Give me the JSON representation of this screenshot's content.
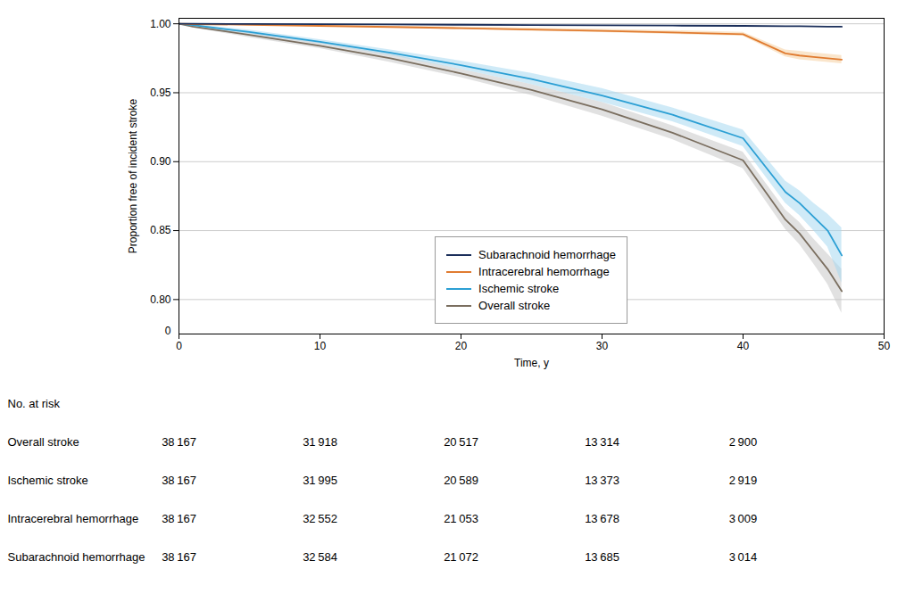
{
  "chart_data": {
    "type": "line",
    "xlabel": "Time, y",
    "ylabel": "Proportion free of incident stroke",
    "xlim": [
      0,
      50
    ],
    "xticks": [
      0,
      10,
      20,
      30,
      40,
      50
    ],
    "ylim": [
      0.775,
      1.004
    ],
    "yticks": [
      {
        "value": 0.8,
        "label": "0.80"
      },
      0.85,
      {
        "value": 0.9,
        "label": "0.90"
      },
      0.95,
      {
        "value": 1.0,
        "label": "1.00"
      }
    ],
    "grid": "y",
    "legend": "lower center",
    "annotations": [
      {
        "text": "0"
      }
    ],
    "series": [
      {
        "name": "Subarachnoid hemorrhage",
        "color": "#1a2e5a",
        "x": [
          0,
          1,
          5,
          10,
          15,
          20,
          25,
          30,
          35,
          40,
          43,
          44,
          45,
          46,
          47
        ],
        "values": [
          1.0,
          1.0,
          0.9999,
          0.9997,
          0.9995,
          0.9993,
          0.9991,
          0.9989,
          0.9987,
          0.9985,
          0.9983,
          0.9982,
          0.9981,
          0.998,
          0.9979
        ]
      },
      {
        "name": "Intracerebral hemorrhage",
        "color": "#e07b30",
        "ci_color": "#f5cfa0",
        "x": [
          0,
          1,
          5,
          10,
          15,
          20,
          25,
          30,
          35,
          40,
          43,
          44,
          45,
          46,
          47
        ],
        "values": [
          1.0,
          0.9998,
          0.9993,
          0.9985,
          0.9977,
          0.9968,
          0.9958,
          0.9948,
          0.9937,
          0.9924,
          0.9785,
          0.977,
          0.976,
          0.975,
          0.974
        ],
        "ci_upper": [
          1.0,
          1.0,
          0.9997,
          0.999,
          0.9984,
          0.9977,
          0.9969,
          0.996,
          0.995,
          0.9938,
          0.981,
          0.98,
          0.979,
          0.978,
          0.977
        ],
        "ci_lower": [
          1.0,
          0.9996,
          0.9989,
          0.998,
          0.997,
          0.9959,
          0.9947,
          0.9936,
          0.9924,
          0.991,
          0.976,
          0.974,
          0.973,
          0.972,
          0.971
        ]
      },
      {
        "name": "Ischemic stroke",
        "color": "#2b9fd4",
        "ci_color": "#a8d8f0",
        "x": [
          0,
          1,
          5,
          10,
          15,
          20,
          25,
          30,
          35,
          40,
          43,
          44,
          45,
          46,
          47
        ],
        "values": [
          1.0,
          0.999,
          0.994,
          0.987,
          0.979,
          0.97,
          0.96,
          0.948,
          0.934,
          0.917,
          0.878,
          0.87,
          0.86,
          0.85,
          0.832
        ],
        "ci_upper": [
          1.0,
          0.9995,
          0.9955,
          0.9885,
          0.981,
          0.973,
          0.964,
          0.953,
          0.939,
          0.923,
          0.886,
          0.879,
          0.87,
          0.862,
          0.852
        ],
        "ci_lower": [
          1.0,
          0.9985,
          0.9925,
          0.9855,
          0.977,
          0.967,
          0.956,
          0.943,
          0.929,
          0.911,
          0.87,
          0.861,
          0.85,
          0.838,
          0.812
        ]
      },
      {
        "name": "Overall stroke",
        "color": "#7a6e5f",
        "ci_color": "#c8c8c8",
        "x": [
          0,
          1,
          5,
          10,
          15,
          20,
          25,
          30,
          35,
          40,
          43,
          44,
          45,
          46,
          47
        ],
        "values": [
          1.0,
          0.998,
          0.992,
          0.984,
          0.975,
          0.964,
          0.952,
          0.938,
          0.921,
          0.901,
          0.858,
          0.848,
          0.835,
          0.822,
          0.806
        ],
        "ci_upper": [
          1.0,
          0.999,
          0.994,
          0.986,
          0.978,
          0.967,
          0.956,
          0.943,
          0.926,
          0.907,
          0.865,
          0.856,
          0.844,
          0.833,
          0.822
        ],
        "ci_lower": [
          1.0,
          0.997,
          0.99,
          0.982,
          0.972,
          0.961,
          0.948,
          0.933,
          0.916,
          0.895,
          0.851,
          0.84,
          0.826,
          0.811,
          0.79
        ]
      }
    ],
    "risk_table": {
      "title": "No. at risk",
      "x": [
        0,
        10,
        20,
        30,
        40
      ],
      "rows": [
        {
          "name": "Overall stroke",
          "values": [
            38167,
            31918,
            20517,
            13314,
            2900
          ],
          "value_labels": [
            "38 167",
            "31 918",
            "20 517",
            "13 314",
            "2 900"
          ]
        },
        {
          "name": "Ischemic stroke",
          "values": [
            38167,
            31995,
            20589,
            13373,
            2919
          ],
          "value_labels": [
            "38 167",
            "31 995",
            "20 589",
            "13 373",
            "2 919"
          ]
        },
        {
          "name": "Intracerebral hemorrhage",
          "values": [
            38167,
            32552,
            21053,
            13678,
            3009
          ],
          "value_labels": [
            "38 167",
            "32 552",
            "21 053",
            "13 678",
            "3 009"
          ]
        },
        {
          "name": "Subarachnoid hemorrhage",
          "values": [
            38167,
            32584,
            21072,
            13685,
            3014
          ],
          "value_labels": [
            "38 167",
            "32 584",
            "21 072",
            "13 685",
            "3 014"
          ]
        }
      ]
    }
  }
}
